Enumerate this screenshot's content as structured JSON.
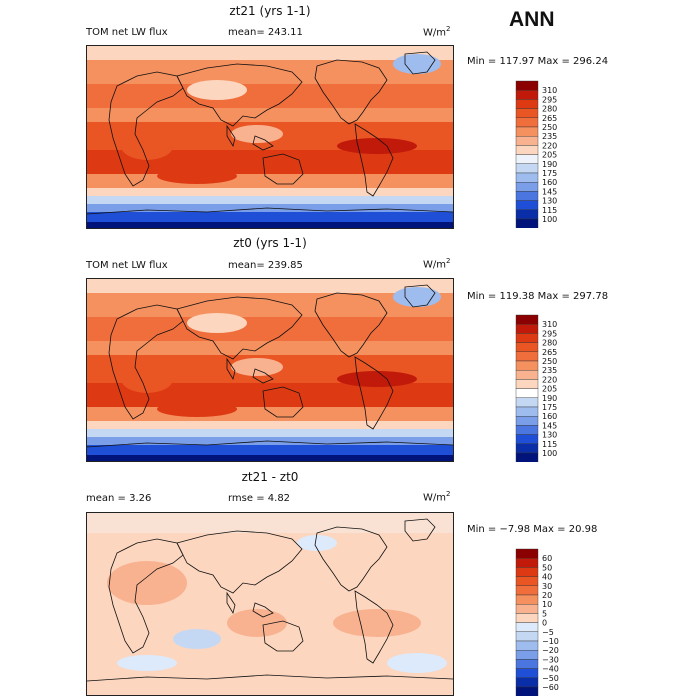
{
  "season": "ANN",
  "panels": [
    {
      "id": "top",
      "title": "zt21 (yrs 1-1)",
      "left_text": "TOM net LW flux",
      "mid_text": "mean= 243.11",
      "units": "W/m",
      "units_sup": "2",
      "minmax": "Min = 117.97 Max = 296.24",
      "colorbar_levels": [
        "310",
        "295",
        "280",
        "265",
        "250",
        "235",
        "220",
        "205",
        "190",
        "175",
        "160",
        "145",
        "130",
        "115",
        "100"
      ],
      "colorbar_colors": [
        "#8b0000",
        "#c11a0a",
        "#dd3a13",
        "#ea5524",
        "#f06e3c",
        "#f5905f",
        "#f9b290",
        "#fcd6bf",
        "#eef2fb",
        "#c5d8f3",
        "#9fbcee",
        "#7a9ee8",
        "#4b76e0",
        "#1f4fd6",
        "#0a2ea8",
        "#00137a"
      ]
    },
    {
      "id": "middle",
      "title": "zt0 (yrs 1-1)",
      "left_text": "TOM net LW flux",
      "mid_text": "mean= 239.85",
      "units": "W/m",
      "units_sup": "2",
      "minmax": "Min = 119.38 Max = 297.78",
      "colorbar_levels": [
        "310",
        "295",
        "280",
        "265",
        "250",
        "235",
        "220",
        "205",
        "190",
        "175",
        "160",
        "145",
        "130",
        "115",
        "100"
      ],
      "colorbar_colors": [
        "#8b0000",
        "#c11a0a",
        "#dd3a13",
        "#ea5524",
        "#f06e3c",
        "#f5905f",
        "#f9b290",
        "#fcd6bf",
        "#ffffff",
        "#c5d8f3",
        "#9fbcee",
        "#7a9ee8",
        "#4b76e0",
        "#1f4fd6",
        "#0a2ea8",
        "#00137a"
      ]
    },
    {
      "id": "bottom",
      "title": "zt21 - zt0",
      "left_text": "mean =    3.26",
      "mid_text": "rmse =    4.82",
      "units": "W/m",
      "units_sup": "2",
      "minmax": "Min =  −7.98 Max =  20.98",
      "colorbar_levels": [
        "60",
        "50",
        "40",
        "30",
        "20",
        "10",
        "5",
        "0",
        "−5",
        "−10",
        "−20",
        "−30",
        "−40",
        "−50",
        "−60"
      ],
      "colorbar_colors": [
        "#8b0000",
        "#c11a0a",
        "#dd3a13",
        "#ea5524",
        "#f06e3c",
        "#f5905f",
        "#f9b290",
        "#fcd6bf",
        "#ddeafb",
        "#c5d8f3",
        "#9fbcee",
        "#7a9ee8",
        "#4b76e0",
        "#1f4fd6",
        "#0a2ea8",
        "#00137a"
      ]
    }
  ],
  "chart_data": [
    {
      "type": "heatmap",
      "title": "zt21 (yrs 1-1)",
      "variable": "TOM net LW flux",
      "mean": 243.11,
      "min": 117.97,
      "max": 296.24,
      "units": "W/m2",
      "levels": [
        100,
        115,
        130,
        145,
        160,
        175,
        190,
        205,
        220,
        235,
        250,
        265,
        280,
        295,
        310
      ]
    },
    {
      "type": "heatmap",
      "title": "zt0 (yrs 1-1)",
      "variable": "TOM net LW flux",
      "mean": 239.85,
      "min": 119.38,
      "max": 297.78,
      "units": "W/m2",
      "levels": [
        100,
        115,
        130,
        145,
        160,
        175,
        190,
        205,
        220,
        235,
        250,
        265,
        280,
        295,
        310
      ]
    },
    {
      "type": "heatmap",
      "title": "zt21 - zt0",
      "mean": 3.26,
      "rmse": 4.82,
      "min": -7.98,
      "max": 20.98,
      "units": "W/m2",
      "levels": [
        -60,
        -50,
        -40,
        -30,
        -20,
        -10,
        -5,
        0,
        5,
        10,
        20,
        30,
        40,
        50,
        60
      ]
    }
  ]
}
